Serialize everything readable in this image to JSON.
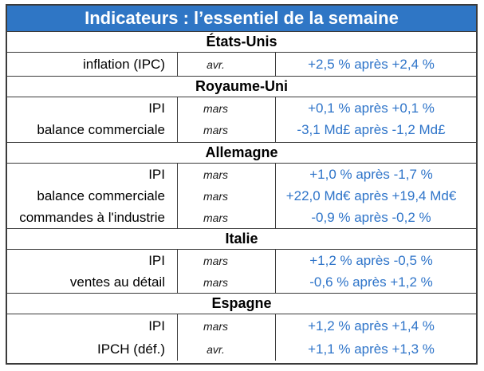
{
  "title": "Indicateurs : l’essentiel de la semaine",
  "sections": [
    {
      "country": "États-Unis",
      "rows": [
        {
          "label": "inflation (IPC)",
          "period": "avr.",
          "value": "+2,5 % après +2,4 %"
        }
      ]
    },
    {
      "country": "Royaume-Uni",
      "rows": [
        {
          "label": "IPI",
          "period": "mars",
          "value": "+0,1 % après +0,1 %"
        },
        {
          "label": "balance commerciale",
          "period": "mars",
          "value": "-3,1 Md£ après -1,2 Md£"
        }
      ]
    },
    {
      "country": "Allemagne",
      "rows": [
        {
          "label": "IPI",
          "period": "mars",
          "value": "+1,0 % après -1,7 %"
        },
        {
          "label": "balance commerciale",
          "period": "mars",
          "value": "+22,0 Md€ après +19,4 Md€"
        },
        {
          "label": "commandes à l'industrie",
          "period": "mars",
          "value": "-0,9 % après -0,2 %"
        }
      ]
    },
    {
      "country": "Italie",
      "rows": [
        {
          "label": "IPI",
          "period": "mars",
          "value": "+1,2 % après -0,5 %"
        },
        {
          "label": "ventes au détail",
          "period": "mars",
          "value": "-0,6 % après +1,2 %"
        }
      ]
    },
    {
      "country": "Espagne",
      "rows": [
        {
          "label": "IPI",
          "period": "mars",
          "value": "+1,2 % après +1,4 %"
        },
        {
          "label": "IPCH (déf.)",
          "period": "avr.",
          "value": "+1,1 % après +1,3 %"
        }
      ]
    }
  ],
  "colors": {
    "title_bg": "#2f76c5",
    "value_text": "#2e74c9",
    "border": "#3b3b3b"
  }
}
